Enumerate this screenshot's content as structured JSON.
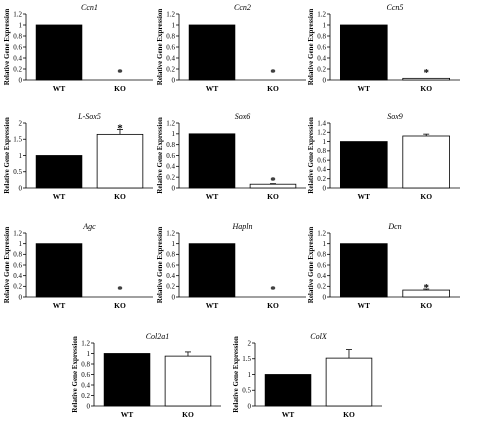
{
  "chart_data": [
    {
      "type": "bar",
      "title": "Ccn1",
      "ylabel": "Relative Gene Expression",
      "categories": [
        "WT",
        "KO"
      ],
      "values": [
        1,
        0
      ],
      "errors": [
        0,
        0
      ],
      "ylim": [
        0,
        1.2
      ],
      "yticks": [
        0,
        0.2,
        0.4,
        0.6,
        0.8,
        1,
        1.2
      ],
      "significance": [
        "",
        "*"
      ],
      "grid": false
    },
    {
      "type": "bar",
      "title": "Ccn2",
      "ylabel": "Relative Gene Expression",
      "categories": [
        "WT",
        "KO"
      ],
      "values": [
        1,
        0
      ],
      "errors": [
        0,
        0
      ],
      "ylim": [
        0,
        1.2
      ],
      "yticks": [
        0,
        0.2,
        0.4,
        0.6,
        0.8,
        1,
        1.2
      ],
      "significance": [
        "",
        "*"
      ],
      "grid": false
    },
    {
      "type": "bar",
      "title": "Ccn5",
      "ylabel": "Relative Gene Expression",
      "categories": [
        "WT",
        "KO"
      ],
      "values": [
        1,
        0.03
      ],
      "errors": [
        0,
        0
      ],
      "ylim": [
        0,
        1.2
      ],
      "yticks": [
        0,
        0.2,
        0.4,
        0.6,
        0.8,
        1,
        1.2
      ],
      "significance": [
        "",
        "*"
      ],
      "grid": false
    },
    {
      "type": "bar",
      "title": "L-Sox5",
      "ylabel": "Relative Gene Expression",
      "categories": [
        "WT",
        "KO"
      ],
      "values": [
        1,
        1.65
      ],
      "errors": [
        0,
        0.15
      ],
      "ylim": [
        0,
        2
      ],
      "yticks": [
        0,
        0.5,
        1,
        1.5,
        2
      ],
      "significance": [
        "",
        "*"
      ],
      "grid": false
    },
    {
      "type": "bar",
      "title": "Sox6",
      "ylabel": "Relative Gene Expression",
      "categories": [
        "WT",
        "KO"
      ],
      "values": [
        1,
        0.07
      ],
      "errors": [
        0,
        0.01
      ],
      "ylim": [
        0,
        1.2
      ],
      "yticks": [
        0,
        0.2,
        0.4,
        0.6,
        0.8,
        1,
        1.2
      ],
      "significance": [
        "",
        "*"
      ],
      "grid": false
    },
    {
      "type": "bar",
      "title": "Sox9",
      "ylabel": "Relative Gene Expression",
      "categories": [
        "WT",
        "KO"
      ],
      "values": [
        1,
        1.12
      ],
      "errors": [
        0,
        0.04
      ],
      "ylim": [
        0,
        1.4
      ],
      "yticks": [
        0,
        0.2,
        0.4,
        0.6,
        0.8,
        1,
        1.2,
        1.4
      ],
      "significance": [
        "",
        ""
      ],
      "grid": false
    },
    {
      "type": "bar",
      "title": "Agc",
      "ylabel": "Relative Gene Expression",
      "categories": [
        "WT",
        "KO"
      ],
      "values": [
        1,
        0
      ],
      "errors": [
        0,
        0
      ],
      "ylim": [
        0,
        1.2
      ],
      "yticks": [
        0,
        0.2,
        0.4,
        0.6,
        0.8,
        1,
        1.2
      ],
      "significance": [
        "",
        "*"
      ],
      "grid": false
    },
    {
      "type": "bar",
      "title": "Hapln",
      "ylabel": "Relative Gene Expression",
      "categories": [
        "WT",
        "KO"
      ],
      "values": [
        1,
        0
      ],
      "errors": [
        0,
        0
      ],
      "ylim": [
        0,
        1.2
      ],
      "yticks": [
        0,
        0.2,
        0.4,
        0.6,
        0.8,
        1,
        1.2
      ],
      "significance": [
        "",
        "*"
      ],
      "grid": false
    },
    {
      "type": "bar",
      "title": "Dcn",
      "ylabel": "Relative Gene Expression",
      "categories": [
        "WT",
        "KO"
      ],
      "values": [
        1,
        0.13
      ],
      "errors": [
        0,
        0.02
      ],
      "ylim": [
        0,
        1.2
      ],
      "yticks": [
        0,
        0.2,
        0.4,
        0.6,
        0.8,
        1,
        1.2
      ],
      "significance": [
        "",
        "*"
      ],
      "grid": false
    },
    {
      "type": "bar",
      "title": "Col2a1",
      "ylabel": "Relative Gene Expression",
      "categories": [
        "WT",
        "KO"
      ],
      "values": [
        1,
        0.95
      ],
      "errors": [
        0,
        0.08
      ],
      "ylim": [
        0,
        1.2
      ],
      "yticks": [
        0,
        0.2,
        0.4,
        0.6,
        0.8,
        1,
        1.2
      ],
      "significance": [
        "",
        ""
      ],
      "grid": false
    },
    {
      "type": "bar",
      "title": "ColX",
      "ylabel": "Relative Gene Expression",
      "categories": [
        "WT",
        "KO"
      ],
      "values": [
        1,
        1.52
      ],
      "errors": [
        0,
        0.27
      ],
      "ylim": [
        0,
        2
      ],
      "yticks": [
        0,
        0.5,
        1,
        1.5,
        2
      ],
      "significance": [
        "",
        ""
      ],
      "grid": false
    }
  ],
  "colors": {
    "wt_bar": "#000000",
    "ko_bar": "#ffffff",
    "axis": "#000000"
  }
}
